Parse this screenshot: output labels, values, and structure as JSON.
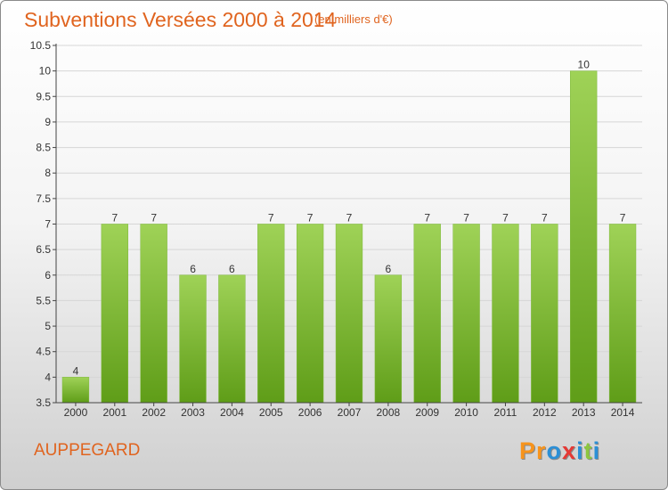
{
  "header": {
    "title": "Subventions Versées 2000 à 2014",
    "subtitle": "(en milliers d'€)"
  },
  "footer": {
    "commune": "AUPPEGARD",
    "brand": "Proxiti",
    "brand_colors": [
      "#f7941d",
      "#f7941d",
      "#2b8fd6",
      "#e53935",
      "#2b8fd6",
      "#8cc63f",
      "#2b8fd6"
    ]
  },
  "colors": {
    "title": "#e0641f",
    "bar_light": "#9fd257",
    "bar_dark": "#5f9d18",
    "grid": "#d6d6d6",
    "axis": "#444444"
  },
  "chart_data": {
    "type": "bar",
    "categories": [
      "2000",
      "2001",
      "2002",
      "2003",
      "2004",
      "2005",
      "2006",
      "2007",
      "2008",
      "2009",
      "2010",
      "2011",
      "2012",
      "2013",
      "2014"
    ],
    "values": [
      4,
      7,
      7,
      6,
      6,
      7,
      7,
      7,
      6,
      7,
      7,
      7,
      7,
      10,
      7
    ],
    "data_labels": [
      "4",
      "7",
      "7",
      "6",
      "6",
      "7",
      "7",
      "7",
      "6",
      "7",
      "7",
      "7",
      "7",
      "10",
      "7"
    ],
    "yticks": [
      "3.5",
      "4",
      "4.5",
      "5",
      "5.5",
      "6",
      "6.5",
      "7",
      "7.5",
      "8",
      "8.5",
      "9",
      "9.5",
      "10",
      "10.5"
    ],
    "ylim": [
      3.5,
      10.5
    ],
    "grid": true,
    "legend": "none"
  }
}
